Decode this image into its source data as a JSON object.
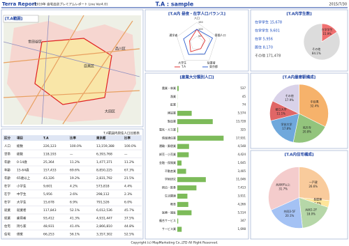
{
  "header": {
    "title": "Terra Report",
    "subtitle": "[2019年 自宅出店プレミアムレポート Line Ver4.0]",
    "area": "T.A : sample",
    "date": "2015/7/30"
  },
  "map": {
    "title": "[T.A範囲]",
    "labels": [
      "世田谷区",
      "目黒区",
      "品川区",
      "大田区"
    ]
  },
  "table": {
    "title": "T.A範囲内居住人口比較表",
    "columns": [
      "区分",
      "項目",
      "T.A",
      "比率",
      "東京都",
      "比率"
    ],
    "rows": [
      [
        "人口",
        "総数",
        "226,123",
        "100.0%",
        "13,159,388",
        "100.0%"
      ],
      [
        "世帯",
        "総数",
        "118,193",
        "—",
        "6,393,768",
        "—"
      ],
      [
        "年齢",
        "0-14歳",
        "25,364",
        "11.2%",
        "1,477,371",
        "11.2%"
      ],
      [
        "年齢",
        "15-64歳",
        "157,433",
        "69.6%",
        "8,850,225",
        "67.3%"
      ],
      [
        "年齢",
        "65歳以上",
        "43,326",
        "19.2%",
        "2,831,792",
        "21.5%"
      ],
      [
        "在学",
        "小学生",
        "9,601",
        "4.2%",
        "573,818",
        "4.4%"
      ],
      [
        "在学",
        "中学生",
        "5,956",
        "2.6%",
        "298,112",
        "2.3%"
      ],
      [
        "在学",
        "大学生",
        "15,678",
        "6.9%",
        "791,526",
        "6.0%"
      ],
      [
        "就業",
        "就業者",
        "117,843",
        "52.1%",
        "6,012,536",
        "45.7%"
      ],
      [
        "就業",
        "雇用者",
        "93,412",
        "41.3%",
        "4,931,447",
        "37.5%"
      ],
      [
        "住宅",
        "持ち家",
        "48,931",
        "41.4%",
        "2,866,810",
        "44.8%"
      ],
      [
        "住宅",
        "借家",
        "66,253",
        "56.1%",
        "3,357,302",
        "52.5%"
      ]
    ]
  },
  "chart_data": [
    {
      "type": "radar",
      "title": "[T.A内 昼夜・在学人口バランス]",
      "categories": [
        "人口",
        "昼間人口",
        "従業者",
        "大学生",
        "通学者"
      ],
      "series": [
        {
          "name": "T.A",
          "color": "#e03030",
          "values": [
            100,
            62,
            48,
            75,
            55
          ]
        },
        {
          "name": "東京都",
          "color": "#3060d0",
          "values": [
            100,
            118,
            95,
            100,
            100
          ]
        }
      ],
      "rlim": [
        0,
        150
      ],
      "rticks": [
        50,
        100,
        150
      ]
    },
    {
      "type": "pie",
      "title": "[T.A内学生数]",
      "categories": [
        "在学学生",
        "その他"
      ],
      "values": [
        15.9,
        84.1
      ],
      "value_labels": [
        "15.9%",
        "84.1%"
      ],
      "colors": [
        "#f07070",
        "#dcdcdc"
      ],
      "annotations": [
        "在学学生 15,678",
        "在学学生 9,601",
        "在学 5,956",
        "居住 8,170",
        "その他 171,478"
      ]
    },
    {
      "type": "hbar",
      "title": "[産業大分類別人口]",
      "categories": [
        "農業・林業",
        "漁業",
        "鉱業",
        "建設業",
        "製造業",
        "電気・ガス業",
        "情報通信業",
        "運輸・郵便業",
        "卸売・小売業",
        "金融・保険業",
        "不動産業",
        "学術研究",
        "宿泊・飲食",
        "生活関連",
        "教育",
        "医療・福祉",
        "複合サービス",
        "サービス業"
      ],
      "values": [
        537,
        45,
        74,
        5574,
        13728,
        325,
        17931,
        4548,
        4424,
        1645,
        3405,
        11046,
        7413,
        3911,
        4266,
        5514,
        347,
        1698
      ],
      "value_labels": [
        "537",
        "45",
        "74",
        "5,574",
        "13,728",
        "325",
        "17,931",
        "4,548",
        "4,424",
        "1,645",
        "3,405",
        "11,046",
        "7,413",
        "3,911",
        "4,266",
        "5,514",
        "347",
        "1,698"
      ],
      "color": "#7dbb5a",
      "xlim": [
        0,
        20000
      ]
    },
    {
      "type": "pie",
      "title": "[T.A内最寄駅構成]",
      "categories": [
        "中目黒",
        "祐天寺",
        "学芸大学",
        "都立大学",
        "その他"
      ],
      "values": [
        32.4,
        20.8,
        17.8,
        11.1,
        17.9
      ],
      "value_labels": [
        "32.4%",
        "20.8%",
        "17.8%",
        "11.1%",
        "17.9%"
      ],
      "colors": [
        "#f6b26b",
        "#93c47d",
        "#6fa8dc",
        "#e06666",
        "#d9d2e9"
      ]
    },
    {
      "type": "pie",
      "title": "[T.A内住宅構成]",
      "categories": [
        "一戸建",
        "長屋建",
        "共同1-2F",
        "共同3-5F",
        "共同6F以上"
      ],
      "values": [
        26.6,
        3.6,
        18.0,
        20.1,
        31.7
      ],
      "value_labels": [
        "26.6%",
        "3.6%",
        "18.0%",
        "20.1%",
        "31.7%"
      ],
      "colors": [
        "#f9cb9c",
        "#ffe599",
        "#b6d7a8",
        "#a4c2f4",
        "#f4cccc"
      ]
    }
  ],
  "footer": "Copyright (c) MapMarketing Co.,LTD All Right Reserved."
}
